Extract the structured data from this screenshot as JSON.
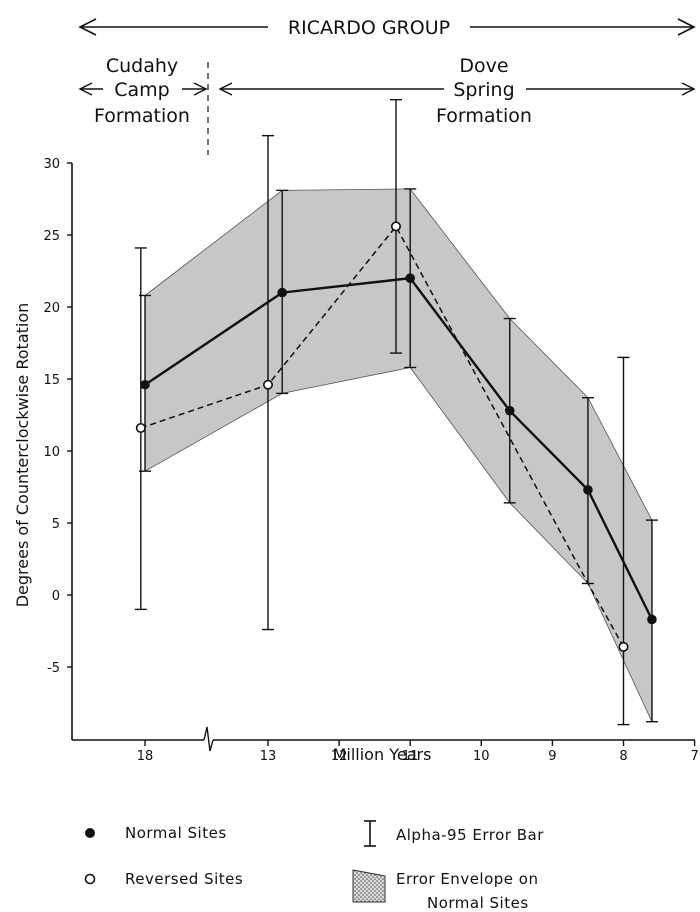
{
  "header": {
    "group_label": "RICARDO GROUP",
    "formation_left": [
      "Cudahy",
      "Camp",
      "Formation"
    ],
    "formation_right": [
      "Dove",
      "Spring",
      "Formation"
    ]
  },
  "chart_data": {
    "type": "line",
    "xlabel": "Million Years",
    "ylabel": "Degrees of Counterclockwise Rotation",
    "ylim": [
      -10,
      30
    ],
    "xlim": [
      7,
      19
    ],
    "x_axis_break_between": [
      18,
      13
    ],
    "x_ticks": [
      {
        "value": 18,
        "label": "18"
      },
      {
        "value": 13,
        "label": "13"
      },
      {
        "value": 12,
        "label": "12"
      },
      {
        "value": 11,
        "label": "11"
      },
      {
        "value": 10,
        "label": "10"
      },
      {
        "value": 9,
        "label": "9"
      },
      {
        "value": 8,
        "label": "8"
      },
      {
        "value": 7,
        "label": "7"
      }
    ],
    "y_ticks": [
      30,
      25,
      20,
      15,
      10,
      5,
      0,
      -5
    ],
    "formation_boundary_x": 16.5,
    "series": [
      {
        "name": "Normal Sites",
        "marker": "filled-circle",
        "line": "solid",
        "points": [
          {
            "x": 18.0,
            "y": 14.6,
            "err_low": 8.6,
            "err_high": 20.8
          },
          {
            "x": 12.8,
            "y": 21.0,
            "err_low": 14.0,
            "err_high": 28.1
          },
          {
            "x": 11.0,
            "y": 22.0,
            "err_low": 15.8,
            "err_high": 28.2
          },
          {
            "x": 9.6,
            "y": 12.8,
            "err_low": 6.4,
            "err_high": 19.2
          },
          {
            "x": 8.5,
            "y": 7.3,
            "err_low": 0.8,
            "err_high": 13.7
          },
          {
            "x": 7.6,
            "y": -1.7,
            "err_low": -8.8,
            "err_high": 5.2
          }
        ]
      },
      {
        "name": "Reversed Sites",
        "marker": "open-circle",
        "line": "dashed",
        "points": [
          {
            "x": 18.1,
            "y": 11.6,
            "err_low": -1.0,
            "err_high": 24.1
          },
          {
            "x": 13.0,
            "y": 14.6,
            "err_low": -2.4,
            "err_high": 31.9
          },
          {
            "x": 11.2,
            "y": 25.6,
            "err_low": 16.8,
            "err_high": 34.4
          },
          {
            "x": 8.5,
            "y": 0.8,
            "err_low": null,
            "err_high": null
          },
          {
            "x": 8.0,
            "y": -3.6,
            "err_low": -9.0,
            "err_high": 16.5
          }
        ]
      }
    ],
    "envelope": {
      "upper": [
        [
          18.0,
          20.8
        ],
        [
          12.8,
          28.1
        ],
        [
          11.0,
          28.2
        ],
        [
          9.6,
          19.2
        ],
        [
          8.5,
          13.7
        ],
        [
          7.6,
          5.2
        ]
      ],
      "lower": [
        [
          7.6,
          -8.8
        ],
        [
          8.5,
          0.8
        ],
        [
          9.6,
          6.4
        ],
        [
          11.0,
          15.8
        ],
        [
          12.8,
          14.0
        ],
        [
          18.0,
          8.6
        ]
      ]
    },
    "legend": {
      "placement": "bottom",
      "items": [
        {
          "key": "normal",
          "label": "Normal Sites"
        },
        {
          "key": "reversed",
          "label": "Reversed Sites"
        },
        {
          "key": "errorbar",
          "label": "Alpha-95 Error Bar"
        },
        {
          "key": "envelope",
          "label_lines": [
            "Error Envelope on",
            "Normal Sites"
          ]
        }
      ]
    },
    "colors": {
      "ink": "#111111",
      "envelope_fill": "#c7c7c7"
    }
  }
}
